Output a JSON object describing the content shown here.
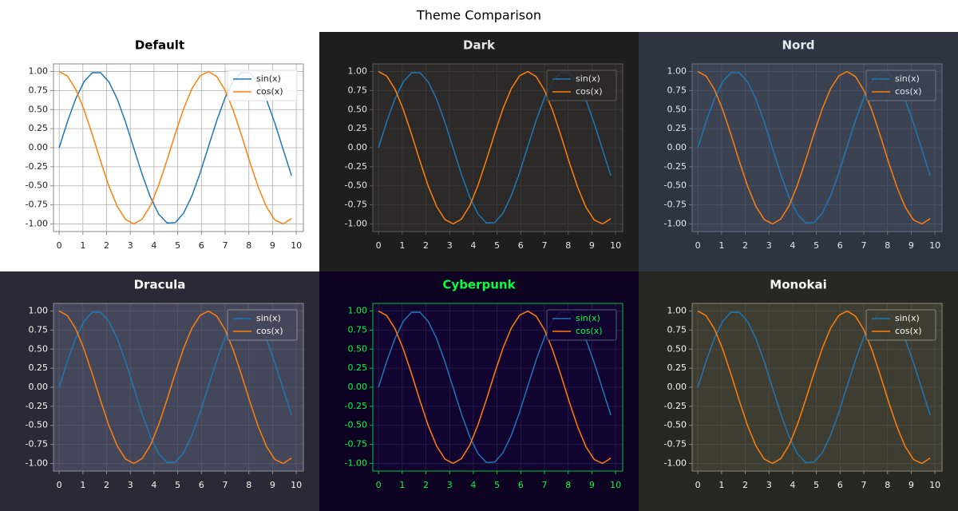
{
  "title": "Theme Comparison",
  "chart_data": [
    {
      "type": "line",
      "title": "Default",
      "x": [
        0,
        0.35,
        0.7,
        1.05,
        1.4,
        1.75,
        2.1,
        2.45,
        2.8,
        3.15,
        3.5,
        3.85,
        4.2,
        4.55,
        4.9,
        5.25,
        5.6,
        5.95,
        6.3,
        6.65,
        7,
        7.35,
        7.7,
        8.05,
        8.4,
        8.75,
        9.1,
        9.45,
        9.8
      ],
      "series": [
        {
          "name": "sin(x)",
          "color": "#1f77b4",
          "values": [
            0,
            0.343,
            0.644,
            0.867,
            0.985,
            0.984,
            0.863,
            0.638,
            0.335,
            -0.008,
            -0.351,
            -0.65,
            -0.872,
            -0.987,
            -0.982,
            -0.859,
            -0.631,
            -0.327,
            0.017,
            0.359,
            0.657,
            0.876,
            0.988,
            0.981,
            0.855,
            0.625,
            0.319,
            -0.025,
            -0.366
          ]
        },
        {
          "name": "cos(x)",
          "color": "#ff7f0e",
          "values": [
            1,
            0.939,
            0.765,
            0.498,
            0.17,
            -0.178,
            -0.505,
            -0.77,
            -0.942,
            -1,
            -0.936,
            -0.76,
            -0.49,
            -0.162,
            0.187,
            0.512,
            0.776,
            0.945,
            1,
            0.933,
            0.754,
            0.483,
            0.153,
            -0.195,
            -0.519,
            -0.781,
            -0.948,
            -1,
            -0.93
          ]
        }
      ],
      "xlim": [
        -0.24,
        10.3
      ],
      "ylim": [
        -1.1,
        1.1
      ],
      "xticks": [
        0,
        1,
        2,
        3,
        4,
        5,
        6,
        7,
        8,
        9,
        10
      ],
      "yticks": [
        {
          "value": 1,
          "label": "1.00"
        },
        0.75,
        {
          "value": 0.5,
          "label": "0.50"
        },
        0.25,
        {
          "value": 0,
          "label": "0.00"
        },
        -0.25,
        {
          "value": -0.5,
          "label": "-0.50"
        },
        -0.75,
        {
          "value": -1,
          "label": "-1.00"
        }
      ],
      "grid": true,
      "legend": "upper right",
      "theme": {
        "background": "#ffffff",
        "axes_background": "#ffffff",
        "text_color": "#222222",
        "title_color": "#000000",
        "grid_color": "#b0b0b0",
        "spine_color": "#888888",
        "legend_background": "#ffffff",
        "legend_edge": "#dddddd"
      }
    },
    {
      "type": "line",
      "title": "Dark",
      "x": [
        0,
        0.35,
        0.7,
        1.05,
        1.4,
        1.75,
        2.1,
        2.45,
        2.8,
        3.15,
        3.5,
        3.85,
        4.2,
        4.55,
        4.9,
        5.25,
        5.6,
        5.95,
        6.3,
        6.65,
        7,
        7.35,
        7.7,
        8.05,
        8.4,
        8.75,
        9.1,
        9.45,
        9.8
      ],
      "series": [
        {
          "name": "sin(x)",
          "color": "#1f77b4",
          "values": [
            0,
            0.343,
            0.644,
            0.867,
            0.985,
            0.984,
            0.863,
            0.638,
            0.335,
            -0.008,
            -0.351,
            -0.65,
            -0.872,
            -0.987,
            -0.982,
            -0.859,
            -0.631,
            -0.327,
            0.017,
            0.359,
            0.657,
            0.876,
            0.988,
            0.981,
            0.855,
            0.625,
            0.319,
            -0.025,
            -0.366
          ]
        },
        {
          "name": "cos(x)",
          "color": "#ff7f0e",
          "values": [
            1,
            0.939,
            0.765,
            0.498,
            0.17,
            -0.178,
            -0.505,
            -0.77,
            -0.942,
            -1,
            -0.936,
            -0.76,
            -0.49,
            -0.162,
            0.187,
            0.512,
            0.776,
            0.945,
            1,
            0.933,
            0.754,
            0.483,
            0.153,
            -0.195,
            -0.519,
            -0.781,
            -0.948,
            -1,
            -0.93
          ]
        }
      ],
      "xlim": [
        -0.24,
        10.3
      ],
      "ylim": [
        -1.1,
        1.1
      ],
      "xticks": [
        0,
        1,
        2,
        3,
        4,
        5,
        6,
        7,
        8,
        9,
        10
      ],
      "yticks": [
        {
          "value": 1,
          "label": "1.00"
        },
        0.75,
        {
          "value": 0.5,
          "label": "0.50"
        },
        0.25,
        {
          "value": 0,
          "label": "0.00"
        },
        -0.25,
        {
          "value": -0.5,
          "label": "-0.50"
        },
        -0.75,
        {
          "value": -1,
          "label": "-1.00"
        }
      ],
      "grid": true,
      "legend": "upper right",
      "theme": {
        "background": "#1e1e1e",
        "axes_background": "#2b2a29",
        "text_color": "#e6e6e6",
        "title_color": "#e6e6e6",
        "grid_color": "#3c3b3a",
        "spine_color": "#5a5a5a",
        "legend_background": "#2b2a29",
        "legend_edge": "#5a5a5a"
      }
    },
    {
      "type": "line",
      "title": "Nord",
      "x": [
        0,
        0.35,
        0.7,
        1.05,
        1.4,
        1.75,
        2.1,
        2.45,
        2.8,
        3.15,
        3.5,
        3.85,
        4.2,
        4.55,
        4.9,
        5.25,
        5.6,
        5.95,
        6.3,
        6.65,
        7,
        7.35,
        7.7,
        8.05,
        8.4,
        8.75,
        9.1,
        9.45,
        9.8
      ],
      "series": [
        {
          "name": "sin(x)",
          "color": "#1f77b4",
          "values": [
            0,
            0.343,
            0.644,
            0.867,
            0.985,
            0.984,
            0.863,
            0.638,
            0.335,
            -0.008,
            -0.351,
            -0.65,
            -0.872,
            -0.987,
            -0.982,
            -0.859,
            -0.631,
            -0.327,
            0.017,
            0.359,
            0.657,
            0.876,
            0.988,
            0.981,
            0.855,
            0.625,
            0.319,
            -0.025,
            -0.366
          ]
        },
        {
          "name": "cos(x)",
          "color": "#ff7f0e",
          "values": [
            1,
            0.939,
            0.765,
            0.498,
            0.17,
            -0.178,
            -0.505,
            -0.77,
            -0.942,
            -1,
            -0.936,
            -0.76,
            -0.49,
            -0.162,
            0.187,
            0.512,
            0.776,
            0.945,
            1,
            0.933,
            0.754,
            0.483,
            0.153,
            -0.195,
            -0.519,
            -0.781,
            -0.948,
            -1,
            -0.93
          ]
        }
      ],
      "xlim": [
        -0.24,
        10.3
      ],
      "ylim": [
        -1.1,
        1.1
      ],
      "xticks": [
        0,
        1,
        2,
        3,
        4,
        5,
        6,
        7,
        8,
        9,
        10
      ],
      "yticks": [
        {
          "value": 1,
          "label": "1.00"
        },
        0.75,
        {
          "value": 0.5,
          "label": "0.50"
        },
        0.25,
        {
          "value": 0,
          "label": "0.00"
        },
        -0.25,
        {
          "value": -0.5,
          "label": "-0.50"
        },
        -0.75,
        {
          "value": -1,
          "label": "-1.00"
        }
      ],
      "grid": true,
      "legend": "upper right",
      "theme": {
        "background": "#2e3440",
        "axes_background": "#3b4252",
        "text_color": "#e5e9f0",
        "title_color": "#e5e9f0",
        "grid_color": "#4c566a",
        "spine_color": "#6b7385",
        "legend_background": "#3b4252",
        "legend_edge": "#6b7385"
      }
    },
    {
      "type": "line",
      "title": "Dracula",
      "x": [
        0,
        0.35,
        0.7,
        1.05,
        1.4,
        1.75,
        2.1,
        2.45,
        2.8,
        3.15,
        3.5,
        3.85,
        4.2,
        4.55,
        4.9,
        5.25,
        5.6,
        5.95,
        6.3,
        6.65,
        7,
        7.35,
        7.7,
        8.05,
        8.4,
        8.75,
        9.1,
        9.45,
        9.8
      ],
      "series": [
        {
          "name": "sin(x)",
          "color": "#1f77b4",
          "values": [
            0,
            0.343,
            0.644,
            0.867,
            0.985,
            0.984,
            0.863,
            0.638,
            0.335,
            -0.008,
            -0.351,
            -0.65,
            -0.872,
            -0.987,
            -0.982,
            -0.859,
            -0.631,
            -0.327,
            0.017,
            0.359,
            0.657,
            0.876,
            0.988,
            0.981,
            0.855,
            0.625,
            0.319,
            -0.025,
            -0.366
          ]
        },
        {
          "name": "cos(x)",
          "color": "#ff7f0e",
          "values": [
            1,
            0.939,
            0.765,
            0.498,
            0.17,
            -0.178,
            -0.505,
            -0.77,
            -0.942,
            -1,
            -0.936,
            -0.76,
            -0.49,
            -0.162,
            0.187,
            0.512,
            0.776,
            0.945,
            1,
            0.933,
            0.754,
            0.483,
            0.153,
            -0.195,
            -0.519,
            -0.781,
            -0.948,
            -1,
            -0.93
          ]
        }
      ],
      "xlim": [
        -0.24,
        10.3
      ],
      "ylim": [
        -1.1,
        1.1
      ],
      "xticks": [
        0,
        1,
        2,
        3,
        4,
        5,
        6,
        7,
        8,
        9,
        10
      ],
      "yticks": [
        {
          "value": 1,
          "label": "1.00"
        },
        0.75,
        {
          "value": 0.5,
          "label": "0.50"
        },
        0.25,
        {
          "value": 0,
          "label": "0.00"
        },
        -0.25,
        {
          "value": -0.5,
          "label": "-0.50"
        },
        -0.75,
        {
          "value": -1,
          "label": "-1.00"
        }
      ],
      "grid": true,
      "legend": "upper right",
      "theme": {
        "background": "#282a36",
        "axes_background": "#44475a",
        "text_color": "#f8f8f2",
        "title_color": "#f8f8f2",
        "grid_color": "#55586b",
        "spine_color": "#8a8c99",
        "legend_background": "#44475a",
        "legend_edge": "#8a8c99"
      }
    },
    {
      "type": "line",
      "title": "Cyberpunk",
      "x": [
        0,
        0.35,
        0.7,
        1.05,
        1.4,
        1.75,
        2.1,
        2.45,
        2.8,
        3.15,
        3.5,
        3.85,
        4.2,
        4.55,
        4.9,
        5.25,
        5.6,
        5.95,
        6.3,
        6.65,
        7,
        7.35,
        7.7,
        8.05,
        8.4,
        8.75,
        9.1,
        9.45,
        9.8
      ],
      "series": [
        {
          "name": "sin(x)",
          "color": "#1f77b4",
          "values": [
            0,
            0.343,
            0.644,
            0.867,
            0.985,
            0.984,
            0.863,
            0.638,
            0.335,
            -0.008,
            -0.351,
            -0.65,
            -0.872,
            -0.987,
            -0.982,
            -0.859,
            -0.631,
            -0.327,
            0.017,
            0.359,
            0.657,
            0.876,
            0.988,
            0.981,
            0.855,
            0.625,
            0.319,
            -0.025,
            -0.366
          ]
        },
        {
          "name": "cos(x)",
          "color": "#ff7f0e",
          "values": [
            1,
            0.939,
            0.765,
            0.498,
            0.17,
            -0.178,
            -0.505,
            -0.77,
            -0.942,
            -1,
            -0.936,
            -0.76,
            -0.49,
            -0.162,
            0.187,
            0.512,
            0.776,
            0.945,
            1,
            0.933,
            0.754,
            0.483,
            0.153,
            -0.195,
            -0.519,
            -0.781,
            -0.948,
            -1,
            -0.93
          ]
        }
      ],
      "xlim": [
        -0.24,
        10.3
      ],
      "ylim": [
        -1.1,
        1.1
      ],
      "xticks": [
        0,
        1,
        2,
        3,
        4,
        5,
        6,
        7,
        8,
        9,
        10
      ],
      "yticks": [
        {
          "value": 1,
          "label": "1.00"
        },
        0.75,
        {
          "value": 0.5,
          "label": "0.50"
        },
        0.25,
        {
          "value": 0,
          "label": "0.00"
        },
        -0.25,
        {
          "value": -0.5,
          "label": "-0.50"
        },
        -0.75,
        {
          "value": -1,
          "label": "-1.00"
        }
      ],
      "grid": true,
      "legend": "upper right",
      "theme": {
        "background": "#0d0221",
        "axes_background": "#120430",
        "text_color": "#00ff41",
        "title_color": "#00ff41",
        "grid_color": "#2a1f4d",
        "spine_color": "#00c832",
        "legend_background": "#120430",
        "legend_edge": "#5a5a7a"
      }
    },
    {
      "type": "line",
      "title": "Monokai",
      "x": [
        0,
        0.35,
        0.7,
        1.05,
        1.4,
        1.75,
        2.1,
        2.45,
        2.8,
        3.15,
        3.5,
        3.85,
        4.2,
        4.55,
        4.9,
        5.25,
        5.6,
        5.95,
        6.3,
        6.65,
        7,
        7.35,
        7.7,
        8.05,
        8.4,
        8.75,
        9.1,
        9.45,
        9.8
      ],
      "series": [
        {
          "name": "sin(x)",
          "color": "#1f77b4",
          "values": [
            0,
            0.343,
            0.644,
            0.867,
            0.985,
            0.984,
            0.863,
            0.638,
            0.335,
            -0.008,
            -0.351,
            -0.65,
            -0.872,
            -0.987,
            -0.982,
            -0.859,
            -0.631,
            -0.327,
            0.017,
            0.359,
            0.657,
            0.876,
            0.988,
            0.981,
            0.855,
            0.625,
            0.319,
            -0.025,
            -0.366
          ]
        },
        {
          "name": "cos(x)",
          "color": "#ff7f0e",
          "values": [
            1,
            0.939,
            0.765,
            0.498,
            0.17,
            -0.178,
            -0.505,
            -0.77,
            -0.942,
            -1,
            -0.936,
            -0.76,
            -0.49,
            -0.162,
            0.187,
            0.512,
            0.776,
            0.945,
            1,
            0.933,
            0.754,
            0.483,
            0.153,
            -0.195,
            -0.519,
            -0.781,
            -0.948,
            -1,
            -0.93
          ]
        }
      ],
      "xlim": [
        -0.24,
        10.3
      ],
      "ylim": [
        -1.1,
        1.1
      ],
      "xticks": [
        0,
        1,
        2,
        3,
        4,
        5,
        6,
        7,
        8,
        9,
        10
      ],
      "yticks": [
        {
          "value": 1,
          "label": "1.00"
        },
        0.75,
        {
          "value": 0.5,
          "label": "0.50"
        },
        0.25,
        {
          "value": 0,
          "label": "0.00"
        },
        -0.25,
        {
          "value": -0.5,
          "label": "-0.50"
        },
        -0.75,
        {
          "value": -1,
          "label": "-1.00"
        }
      ],
      "grid": true,
      "legend": "upper right",
      "theme": {
        "background": "#272822",
        "axes_background": "#3e3d32",
        "text_color": "#f8f8f2",
        "title_color": "#f8f8f2",
        "grid_color": "#4f4e44",
        "spine_color": "#8a897e",
        "legend_background": "#3e3d32",
        "legend_edge": "#8a897e"
      }
    }
  ]
}
